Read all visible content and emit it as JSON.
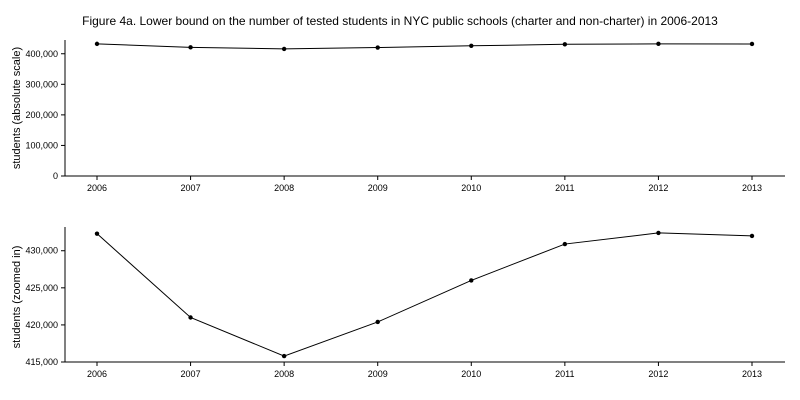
{
  "chart_data": [
    {
      "type": "line",
      "title": "Figure 4a. Lower bound on the number of tested students in NYC public schools (charter and non-charter) in 2006-2013",
      "xlabel": "",
      "ylabel": "students (absolute scale)",
      "x": [
        "2006",
        "2007",
        "2008",
        "2009",
        "2010",
        "2011",
        "2012",
        "2013"
      ],
      "y_ticks": [
        "0",
        "100,000",
        "200,000",
        "300,000",
        "400,000"
      ],
      "ylim": [
        0,
        445000
      ],
      "series": [
        {
          "values": [
            432300,
            421000,
            415800,
            420400,
            426000,
            430900,
            432400,
            432000
          ]
        }
      ],
      "grid": false
    },
    {
      "type": "line",
      "xlabel": "",
      "ylabel": "students (zoomed in)",
      "x": [
        "2006",
        "2007",
        "2008",
        "2009",
        "2010",
        "2011",
        "2012",
        "2013"
      ],
      "y_ticks": [
        "415,000",
        "420,000",
        "425,000",
        "430,000"
      ],
      "ylim": [
        415000,
        433200
      ],
      "series": [
        {
          "values": [
            432300,
            421000,
            415800,
            420400,
            426000,
            430900,
            432400,
            432000
          ]
        }
      ],
      "grid": false
    }
  ]
}
